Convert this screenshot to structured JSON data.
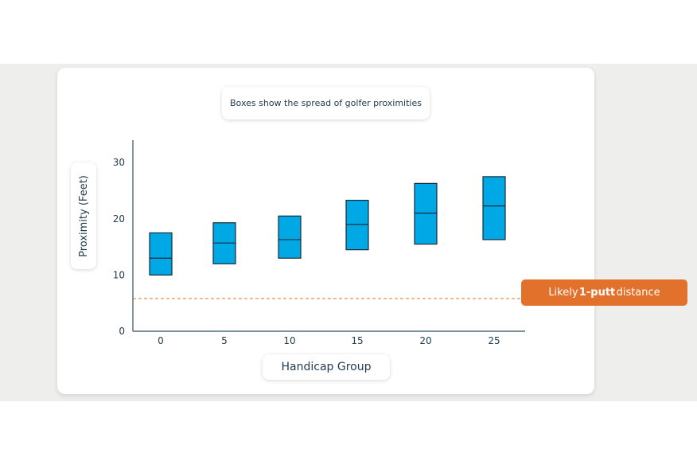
{
  "chart_data": {
    "type": "box",
    "subtitle": "Boxes show the spread of golfer proximities",
    "xlabel": "Handicap Group",
    "ylabel": "Proximity (Feet)",
    "yticks": [
      0,
      10,
      20,
      30
    ],
    "ylim": [
      0,
      34
    ],
    "categories": [
      "0",
      "5",
      "10",
      "15",
      "20",
      "25"
    ],
    "boxes": [
      {
        "group": "0",
        "low": 10.0,
        "median": 13.0,
        "high": 17.5
      },
      {
        "group": "5",
        "low": 12.0,
        "median": 15.7,
        "high": 19.3
      },
      {
        "group": "10",
        "low": 13.0,
        "median": 16.3,
        "high": 20.5
      },
      {
        "group": "15",
        "low": 14.5,
        "median": 19.0,
        "high": 23.3
      },
      {
        "group": "20",
        "low": 15.5,
        "median": 21.0,
        "high": 26.3
      },
      {
        "group": "25",
        "low": 16.3,
        "median": 22.3,
        "high": 27.5
      }
    ],
    "reference_line": {
      "value": 5.8,
      "style": "dashed"
    },
    "annotation": {
      "prefix": "Likely ",
      "bold": "1-putt",
      "suffix": " distance"
    }
  },
  "colors": {
    "box_fill": "#00a9e6",
    "box_stroke": "#1b2a36",
    "axis": "#2f4f5f",
    "reference_line": "#e2712c",
    "callout": "#e2712c",
    "text": "#1f3a4d"
  }
}
